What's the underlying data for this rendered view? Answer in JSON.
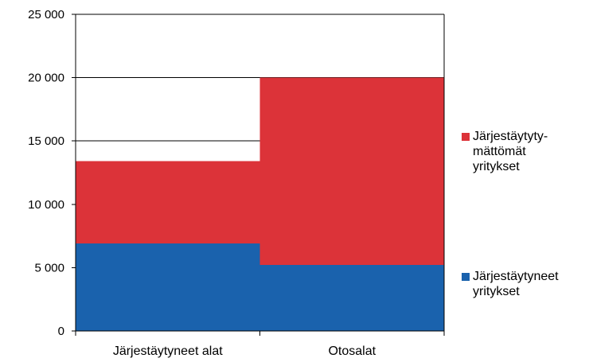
{
  "chart_data": {
    "type": "bar",
    "stacked": true,
    "categories": [
      "Järjestäytyneet alat",
      "Otosalat"
    ],
    "series": [
      {
        "name": "Järjestäytyneet yritykset",
        "values": [
          6900,
          5200
        ],
        "color": "#1a62ad"
      },
      {
        "name": "Järjestäytymättömät yritykset",
        "values": [
          6500,
          14800
        ],
        "color": "#dc3339"
      }
    ],
    "ylim": [
      0,
      25000
    ],
    "yticks": [
      0,
      5000,
      10000,
      15000,
      20000,
      25000
    ],
    "ytick_labels": [
      "0",
      "5 000",
      "10 000",
      "15 000",
      "20 000",
      "25 000"
    ],
    "grid": true,
    "legend": {
      "placement": "right",
      "entries": [
        {
          "lines": [
            "Järjestäytyty-",
            "mättömät",
            "yritykset"
          ],
          "color": "#dc3339"
        },
        {
          "lines": [
            "Järjestäytyneet",
            "yritykset"
          ],
          "color": "#1a62ad"
        }
      ]
    }
  }
}
